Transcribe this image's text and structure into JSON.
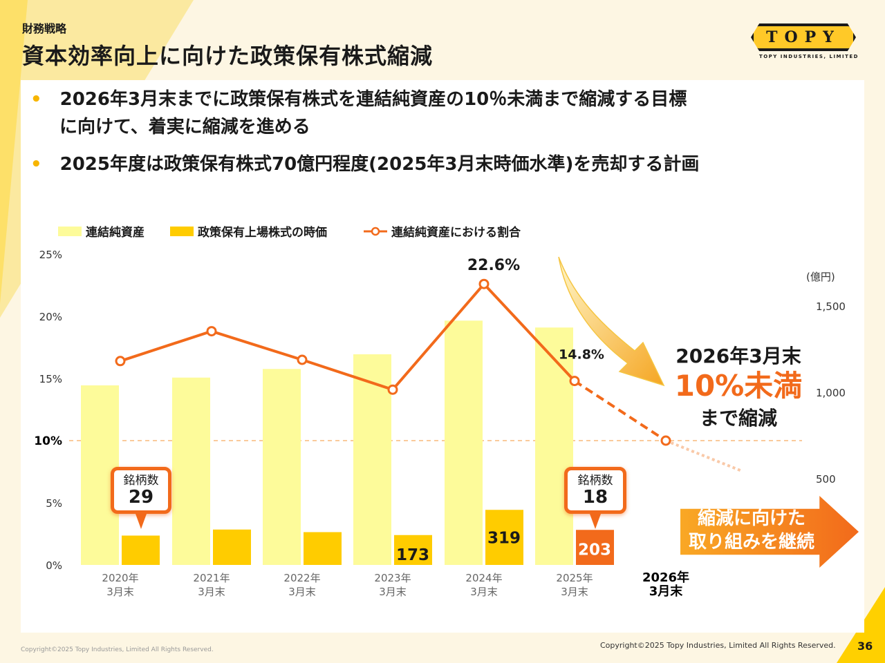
{
  "header": {
    "section": "財務戦略",
    "title": "資本効率向上に向けた政策保有株式縮減"
  },
  "logo": {
    "mark": "TOPY",
    "sub": "TOPY INDUSTRIES, LIMITED"
  },
  "bullets": [
    {
      "line1": "2026年3月末までに政策保有株式を連結純資産の10％未満まで縮減する目標",
      "line2": "に向けて、着実に縮減を進める"
    },
    {
      "line1": "2025年度は政策保有株式70億円程度(2025年3月末時価水準)を売却する計画"
    }
  ],
  "colors": {
    "net_assets": "#fdfb9a",
    "holdings": "#ffcc00",
    "holdings_2025": "#f26a1b",
    "ratio_line": "#f26a1b"
  },
  "chart_data": {
    "type": "bar",
    "categories": [
      "2020年\n3月末",
      "2021年\n3月末",
      "2022年\n3月末",
      "2023年\n3月末",
      "2024年\n3月末",
      "2025年\n3月末",
      "2026年\n3月末"
    ],
    "series": [
      {
        "name": "連結純資産",
        "axis": "right",
        "values": [
          1040,
          1085,
          1135,
          1220,
          1415,
          1375,
          null
        ]
      },
      {
        "name": "政策保有上場株式の時価",
        "axis": "right",
        "values": [
          170,
          205,
          190,
          173,
          319,
          203,
          null
        ]
      },
      {
        "name": "連結純資産における割合",
        "axis": "left",
        "type": "line",
        "values": [
          16.4,
          18.8,
          16.5,
          14.1,
          22.6,
          14.8,
          10.0
        ],
        "projected_from_index": 5
      }
    ],
    "data_labels": {
      "holdings": [
        "",
        "",
        "",
        "173",
        "319",
        "203",
        ""
      ],
      "ratio": [
        "",
        "",
        "",
        "",
        "22.6%",
        "14.8%",
        ""
      ]
    },
    "ylim_left": [
      0,
      25
    ],
    "yticks_left": [
      "0%",
      "5%",
      "10%",
      "15%",
      "20%",
      "25%"
    ],
    "ylim_right": [
      0,
      1800
    ],
    "yticks_right": [
      "500",
      "1,000",
      "1,500"
    ],
    "yunit_right": "(億円)",
    "target_line": 10,
    "legend": "top-left",
    "grid": false
  },
  "callouts": [
    {
      "label": "銘柄数",
      "value": "29"
    },
    {
      "label": "銘柄数",
      "value": "18"
    }
  ],
  "target": {
    "line1": "2026年3月末",
    "line2": "10%未満",
    "line3": "まで縮減"
  },
  "arrow": {
    "line1": "縮減に向けた",
    "line2": "取り組みを継続"
  },
  "footer": {
    "copyright_left": "Copyright©2025 Topy Industries, Limited All Rights Reserved.",
    "copyright_right": "Copyright©2025 Topy Industries, Limited All Rights Reserved.",
    "page": "36"
  }
}
